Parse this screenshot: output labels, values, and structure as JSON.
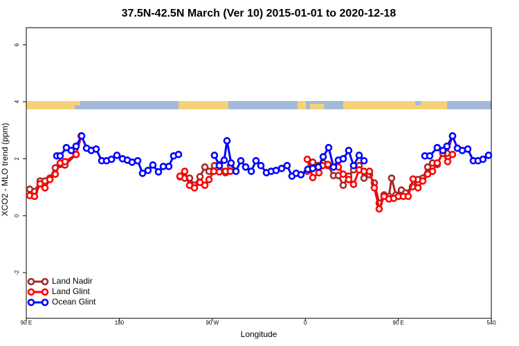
{
  "chart_data": {
    "type": "line",
    "title": "37.5N-42.5N March (Ver 10)   2015-01-01 to 2020-12-18",
    "x_label": "Longitude",
    "y_label": "XCO2 - MLO trend (ppm)",
    "xlim": [
      90,
      540
    ],
    "ylim": [
      -3.6,
      6.6
    ],
    "xticks": [
      {
        "value": 90,
        "label": "90 E"
      },
      180,
      {
        "value": 270,
        "label": "90 W"
      },
      {
        "value": 360,
        "label": "0"
      },
      {
        "value": 450,
        "label": "90 E"
      },
      540
    ],
    "yticks": [
      -2,
      0,
      2,
      4,
      6
    ],
    "grid": false,
    "legend": "bottom-left",
    "series": [
      {
        "name": "Land Nadir",
        "color": "#a52a2a",
        "x": [
          93.3,
          98,
          103.4,
          108.1,
          112.8,
          118.1,
          122.8,
          127.5,
          138.2,
          143.1,
          null,
          238.7,
          243.3,
          248,
          252.7,
          258.1,
          262.8,
          266.8,
          272.1,
          276.8,
          282.8,
          287.5,
          null,
          361.9,
          367.2,
          371.9,
          377.3,
          381.9,
          387.3,
          392,
          396.7,
          402,
          406.7,
          412.1,
          416.8,
          422.1,
          426.8,
          431.5,
          436.2,
          440.9,
          443.5,
          447.6,
          453,
          457,
          463.7,
          469,
          473.7,
          478.4,
          483.1,
          487.7,
          493.1,
          497.1,
          502.5
        ],
        "values": [
          0.93,
          0.85,
          1.22,
          1.22,
          1.32,
          1.68,
          1.8,
          1.78,
          2.15,
          2.8,
          null,
          1.37,
          1.32,
          1.32,
          1.07,
          1.37,
          1.71,
          1.56,
          1.76,
          1.8,
          1.51,
          1.76,
          null,
          1.56,
          1.88,
          1.76,
          1.85,
          1.76,
          1.41,
          1.41,
          1.07,
          1.39,
          1.61,
          1.76,
          1.32,
          1.44,
          1.15,
          0.44,
          0.73,
          0.68,
          1.32,
          0.73,
          0.9,
          0.8,
          1.02,
          1.27,
          1.32,
          1.71,
          1.85,
          1.8,
          2.24,
          2.19,
          2.8
        ]
      },
      {
        "name": "Land Glint",
        "color": "#ff0000",
        "x": [
          93.3,
          98,
          103.4,
          108.1,
          112.8,
          118.1,
          122.8,
          127.5,
          138.2,
          143.1,
          null,
          238.7,
          243.3,
          248,
          252.7,
          258.1,
          262.8,
          266.8,
          271.5,
          276.8,
          282.8,
          287.5,
          null,
          361.9,
          367.2,
          373.2,
          376.6,
          381.9,
          387.3,
          392,
          396.7,
          402,
          406.7,
          412.1,
          416.8,
          422.1,
          426.8,
          431.5,
          436.2,
          440.9,
          445.6,
          450.2,
          454.9,
          459.6,
          464.3,
          469,
          473.7,
          478.4,
          483.1,
          487.7,
          493.1,
          497.8,
          502.5
        ],
        "values": [
          0.71,
          0.68,
          1.12,
          0.98,
          1.27,
          1.46,
          1.85,
          1.9,
          2.15,
          2.8,
          null,
          1.39,
          1.56,
          1.07,
          0.98,
          1.17,
          1.07,
          1.27,
          1.56,
          1.54,
          1.56,
          1.56,
          null,
          1.98,
          1.34,
          1.51,
          1.76,
          1.8,
          1.71,
          1.71,
          1.46,
          1.27,
          1.1,
          1.61,
          1.56,
          1.56,
          0.98,
          0.24,
          0.68,
          0.59,
          0.61,
          0.68,
          0.68,
          0.68,
          1.29,
          0.98,
          1.22,
          1.46,
          1.56,
          1.85,
          2.19,
          1.9,
          2.15
        ]
      },
      {
        "name": "Ocean Glint",
        "color": "#0000ff",
        "x": [
          119.5,
          122.8,
          128.8,
          133.5,
          138.2,
          143.6,
          148.3,
          152.9,
          157.6,
          163,
          167.7,
          172.4,
          177.7,
          183.1,
          187.8,
          192.4,
          197.8,
          202.5,
          207.8,
          212.5,
          217.9,
          222.6,
          227.9,
          232.6,
          237.3,
          null,
          272.1,
          276.8,
          281.5,
          284.2,
          288.2,
          292.9,
          297.6,
          302.3,
          307.7,
          312.3,
          317,
          322.4,
          327,
          331.7,
          337.1,
          342.4,
          347.1,
          351.1,
          355.8,
          362.5,
          367.2,
          372.6,
          377.3,
          382.6,
          387.3,
          392,
          396.7,
          402,
          406.7,
          412.1,
          416.8,
          null,
          475.7,
          480.4,
          487.7,
          493.1,
          497.1,
          502.5,
          507.2,
          511.9,
          517.2,
          522.6,
          527.2,
          531.9,
          537.3
        ],
        "values": [
          2.1,
          2.1,
          2.39,
          2.29,
          2.44,
          2.8,
          2.37,
          2.29,
          2.34,
          1.93,
          1.93,
          1.98,
          2.12,
          2.0,
          1.95,
          1.88,
          1.93,
          1.49,
          1.59,
          1.78,
          1.54,
          1.73,
          1.73,
          2.1,
          2.15,
          null,
          2.12,
          1.76,
          1.95,
          2.63,
          1.85,
          1.56,
          1.93,
          1.71,
          1.56,
          1.93,
          1.76,
          1.51,
          1.56,
          1.59,
          1.66,
          1.76,
          1.39,
          1.49,
          1.44,
          1.63,
          1.66,
          1.71,
          2.07,
          2.39,
          1.71,
          1.95,
          2.0,
          2.29,
          1.76,
          2.12,
          1.93,
          null,
          2.1,
          2.1,
          2.39,
          2.29,
          2.44,
          2.8,
          2.37,
          2.29,
          2.34,
          1.93,
          1.93,
          1.98,
          2.12
        ]
      }
    ]
  }
}
